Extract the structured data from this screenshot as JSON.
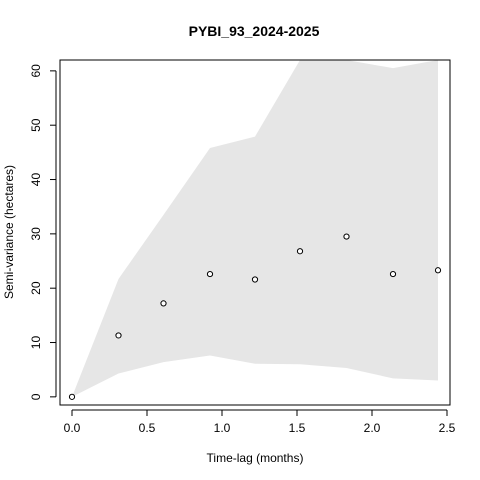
{
  "chart_data": {
    "type": "scatter",
    "title": "PYBI_93_2024-2025",
    "xlabel": "Time-lag (months)",
    "ylabel": "Semi-variance (hectares)",
    "xlim": [
      -0.08,
      2.52
    ],
    "ylim": [
      -1.5,
      62
    ],
    "x_ticks": [
      0.0,
      0.5,
      1.0,
      1.5,
      2.0,
      2.5
    ],
    "x_tick_labels": [
      "0.0",
      "0.5",
      "1.0",
      "1.5",
      "2.0",
      "2.5"
    ],
    "y_ticks": [
      0,
      10,
      20,
      30,
      40,
      50,
      60
    ],
    "y_tick_labels": [
      "0",
      "10",
      "20",
      "30",
      "40",
      "50",
      "60"
    ],
    "grid": false,
    "series": [
      {
        "x": [
          0.0,
          0.31,
          0.61,
          0.92,
          1.22,
          1.52,
          1.83,
          2.14,
          2.44
        ],
        "y": [
          0.0,
          11.3,
          17.2,
          22.6,
          21.6,
          26.8,
          29.5,
          22.6,
          23.3
        ]
      }
    ],
    "confidence_band": {
      "x": [
        0.0,
        0.31,
        0.61,
        0.92,
        1.22,
        1.52,
        1.83,
        2.14,
        2.44
      ],
      "upper": [
        0.0,
        21.7,
        33.5,
        45.8,
        47.9,
        65.0,
        65.0,
        60.5,
        65.0
      ],
      "lower": [
        0.0,
        4.3,
        6.4,
        7.6,
        6.1,
        6.0,
        5.3,
        3.4,
        3.0
      ],
      "color": "#e6e6e6"
    },
    "point_fill": "#ffffff",
    "point_stroke": "#000000"
  }
}
